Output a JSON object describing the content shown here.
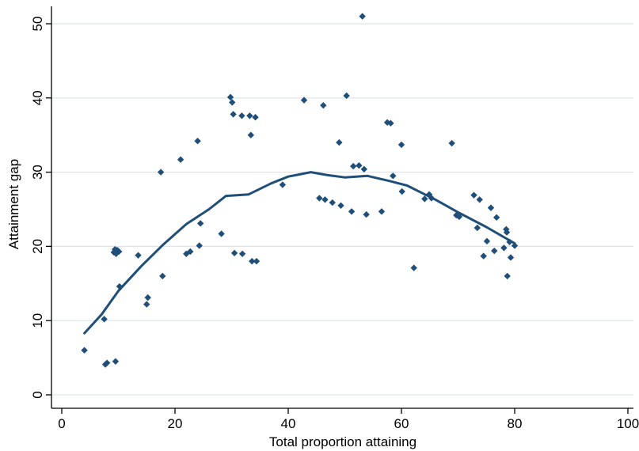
{
  "chart_data": {
    "type": "scatter",
    "xlabel": "Total proportion attaining",
    "ylabel": "Attainment gap",
    "xlim": [
      0,
      100
    ],
    "ylim": [
      0,
      50
    ],
    "xticks": [
      0,
      20,
      40,
      60,
      80,
      100
    ],
    "yticks": [
      0,
      10,
      20,
      30,
      40,
      50
    ],
    "grid": "horizontal",
    "colors": {
      "points": "#1f4e79",
      "fit_line": "#1f4e79",
      "grid": "#d9e6ee",
      "axis": "#000000"
    },
    "series": [
      {
        "type": "scatter",
        "points": [
          [
            4,
            6
          ],
          [
            7.5,
            10.2
          ],
          [
            7.7,
            4.1
          ],
          [
            8,
            4.3
          ],
          [
            9.5,
            4.5
          ],
          [
            9.2,
            19.2
          ],
          [
            9.4,
            19.6
          ],
          [
            9.6,
            19.0
          ],
          [
            9.8,
            19.5
          ],
          [
            10.1,
            19.3
          ],
          [
            10.2,
            14.6
          ],
          [
            13.5,
            18.8
          ],
          [
            15,
            12.2
          ],
          [
            15.2,
            13.1
          ],
          [
            17.5,
            30.0
          ],
          [
            17.8,
            16.0
          ],
          [
            21,
            31.7
          ],
          [
            22,
            19.0
          ],
          [
            22.7,
            19.3
          ],
          [
            24,
            34.2
          ],
          [
            24.3,
            20.1
          ],
          [
            24.5,
            23.1
          ],
          [
            28.2,
            21.7
          ],
          [
            29.8,
            40.1
          ],
          [
            30.1,
            39.4
          ],
          [
            30.3,
            37.8
          ],
          [
            30.5,
            19.1
          ],
          [
            31.8,
            37.6
          ],
          [
            31.9,
            19.0
          ],
          [
            33.2,
            37.6
          ],
          [
            33.4,
            35.0
          ],
          [
            33.6,
            18.0
          ],
          [
            34.2,
            37.4
          ],
          [
            34.4,
            18.0
          ],
          [
            39,
            28.3
          ],
          [
            42.8,
            39.7
          ],
          [
            45.5,
            26.5
          ],
          [
            46.2,
            39.0
          ],
          [
            46.5,
            26.3
          ],
          [
            47.8,
            25.9
          ],
          [
            49,
            34.0
          ],
          [
            49.3,
            25.5
          ],
          [
            50.3,
            40.3
          ],
          [
            51.2,
            24.7
          ],
          [
            51.5,
            30.8
          ],
          [
            52.5,
            30.9
          ],
          [
            53.1,
            51.0
          ],
          [
            53.4,
            30.4
          ],
          [
            53.8,
            24.3
          ],
          [
            56.5,
            24.7
          ],
          [
            57.5,
            36.7
          ],
          [
            58.1,
            36.6
          ],
          [
            58.5,
            29.5
          ],
          [
            60,
            33.7
          ],
          [
            60.1,
            27.4
          ],
          [
            62.2,
            17.1
          ],
          [
            64.1,
            26.4
          ],
          [
            64.9,
            27.0
          ],
          [
            65.3,
            26.5
          ],
          [
            68.9,
            33.9
          ],
          [
            69.7,
            24.2
          ],
          [
            70.2,
            24.0
          ],
          [
            72.8,
            26.9
          ],
          [
            73.4,
            22.5
          ],
          [
            73.8,
            26.3
          ],
          [
            74.5,
            18.7
          ],
          [
            75.1,
            20.7
          ],
          [
            75.8,
            25.2
          ],
          [
            76.4,
            19.4
          ],
          [
            76.8,
            23.9
          ],
          [
            78.1,
            19.8
          ],
          [
            78.5,
            22.3
          ],
          [
            78.6,
            21.9
          ],
          [
            78.7,
            16.0
          ],
          [
            79.1,
            20.6
          ],
          [
            79.3,
            18.5
          ],
          [
            80.0,
            20.1
          ]
        ]
      },
      {
        "type": "line",
        "points": [
          [
            4,
            8.3
          ],
          [
            7,
            10.8
          ],
          [
            10,
            14.0
          ],
          [
            14,
            17.3
          ],
          [
            18,
            20.3
          ],
          [
            22,
            23.0
          ],
          [
            26,
            25.0
          ],
          [
            29,
            26.8
          ],
          [
            33,
            27.0
          ],
          [
            37,
            28.5
          ],
          [
            40,
            29.4
          ],
          [
            44,
            30.0
          ],
          [
            47,
            29.6
          ],
          [
            50,
            29.3
          ],
          [
            54,
            29.5
          ],
          [
            58,
            28.8
          ],
          [
            61,
            28.2
          ],
          [
            66,
            26.3
          ],
          [
            70,
            24.6
          ],
          [
            75,
            22.6
          ],
          [
            80,
            20.4
          ]
        ]
      }
    ]
  }
}
